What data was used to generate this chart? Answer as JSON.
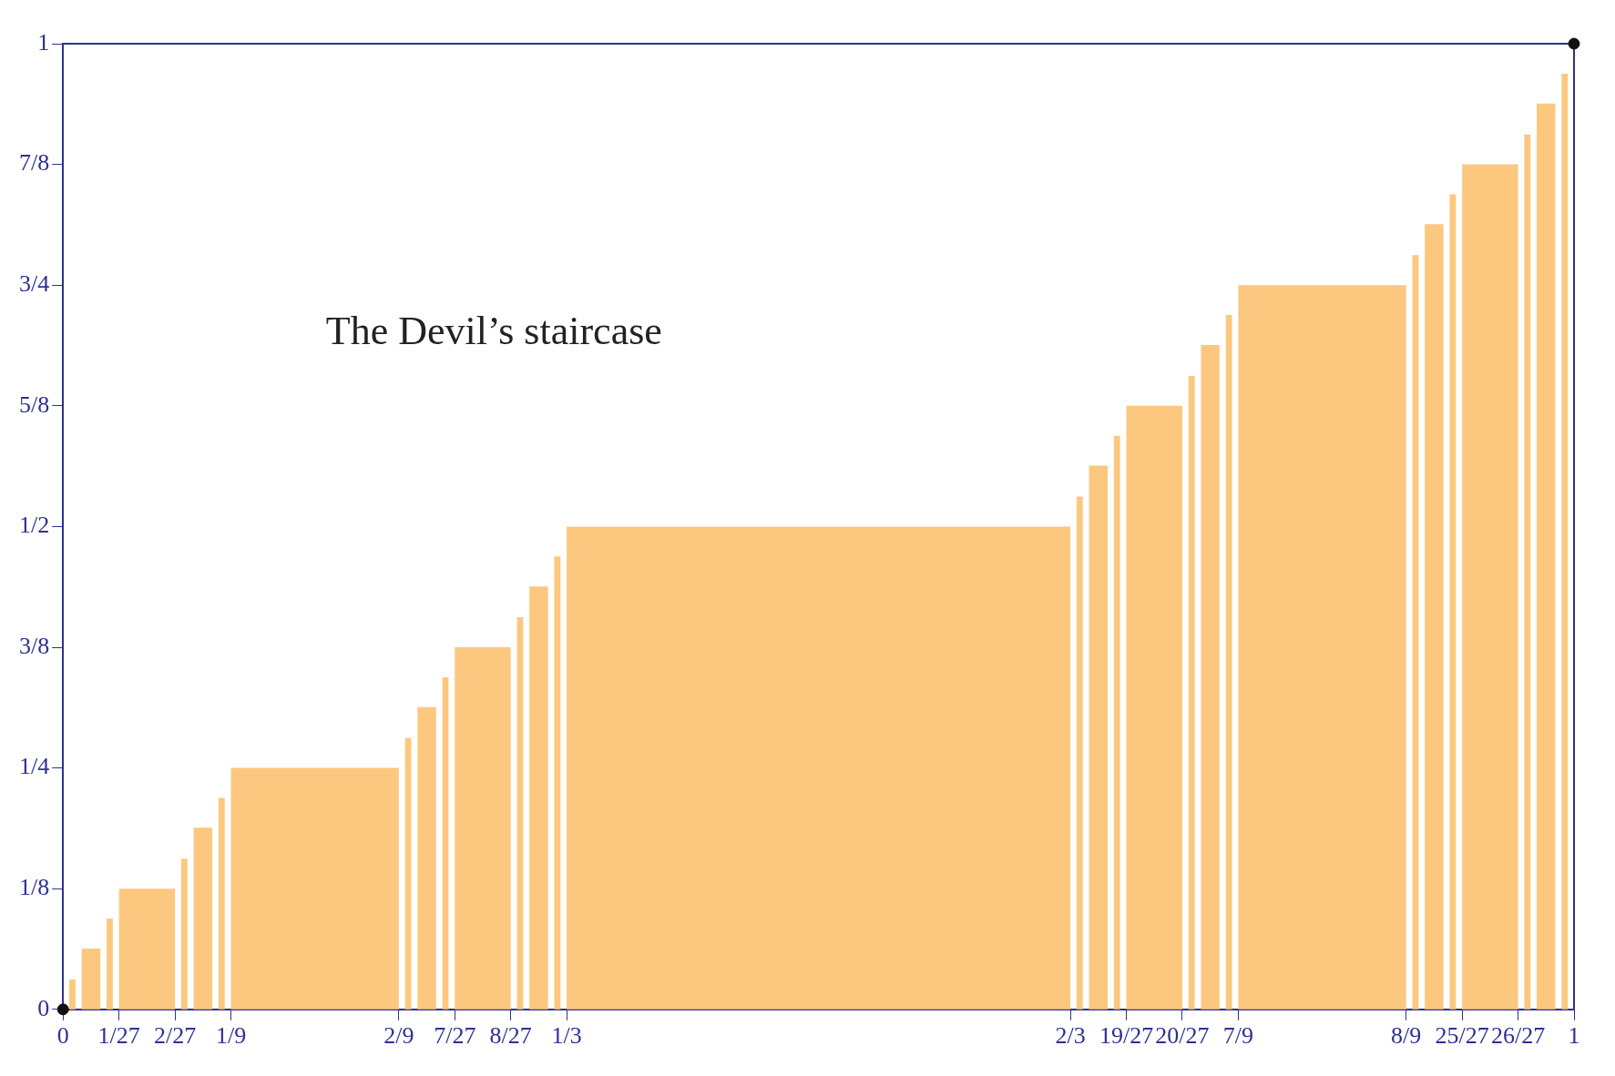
{
  "chart_data": {
    "type": "histogram",
    "annotations": [
      "The Devil’s staircase"
    ],
    "bins": [
      0.00412,
      0.00823,
      0.01235,
      0.02469,
      0.02881,
      0.03292,
      0.03704,
      0.07407,
      0.07819,
      0.0823,
      0.08642,
      0.09877,
      0.10288,
      0.107,
      0.11111,
      0.22222,
      0.22634,
      0.23045,
      0.23457,
      0.24691,
      0.25103,
      0.25514,
      0.25926,
      0.2963,
      0.30041,
      0.30453,
      0.30864,
      0.32099,
      0.3251,
      0.32922,
      0.33333,
      0.66667,
      0.67078,
      0.6749,
      0.67901,
      0.69136,
      0.69547,
      0.69959,
      0.7037,
      0.74074,
      0.74486,
      0.74897,
      0.75309,
      0.76543,
      0.76955,
      0.77366,
      0.77778,
      0.88889,
      0.893,
      0.89712,
      0.90123,
      0.91358,
      0.9177,
      0.92181,
      0.92593,
      0.96296,
      0.96708,
      0.97119,
      0.97531,
      0.98765,
      0.99177,
      0.99588
    ],
    "values": [
      0.031,
      null,
      0.063,
      null,
      0.094,
      null,
      0.125,
      null,
      0.156,
      null,
      0.188,
      null,
      0.219,
      null,
      0.25,
      null,
      0.281,
      null,
      0.313,
      null,
      0.344,
      null,
      0.375,
      null,
      0.406,
      null,
      0.438,
      null,
      0.469,
      null,
      0.5,
      null,
      0.531,
      null,
      0.563,
      null,
      0.594,
      null,
      0.625,
      null,
      0.656,
      null,
      0.688,
      null,
      0.719,
      null,
      0.75,
      null,
      0.781,
      null,
      0.813,
      null,
      0.844,
      null,
      0.875,
      null,
      0.906,
      null,
      0.938,
      null,
      0.969
    ],
    "color": "#fcc87f",
    "series": [
      {
        "type": "scatter",
        "x": [
          0,
          1
        ],
        "values": [
          0,
          1
        ],
        "color": "#111111"
      }
    ],
    "marker": "circle",
    "grid": false,
    "legend": false,
    "xlim": [
      0,
      1
    ],
    "xticks": [
      0,
      {
        "value": 0.037037,
        "label": "1/27"
      },
      {
        "value": 0.074074,
        "label": "2/27"
      },
      {
        "value": 0.111111,
        "label": "1/9"
      },
      {
        "value": 0.222222,
        "label": "2/9"
      },
      {
        "value": 0.259259,
        "label": "7/27"
      },
      {
        "value": 0.296296,
        "label": "8/27"
      },
      {
        "value": 0.333333,
        "label": "1/3"
      },
      {
        "value": 0.666667,
        "label": "2/3"
      },
      {
        "value": 0.703704,
        "label": "19/27"
      },
      {
        "value": 0.740741,
        "label": "20/27"
      },
      {
        "value": 0.777778,
        "label": "7/9"
      },
      {
        "value": 0.888889,
        "label": "8/9"
      },
      {
        "value": 0.925926,
        "label": "25/27"
      },
      {
        "value": 0.962963,
        "label": "26/27"
      },
      1
    ],
    "ylim": [
      0,
      1
    ],
    "yticks": [
      0,
      {
        "value": 0.125,
        "label": "1/8"
      },
      {
        "value": 0.25,
        "label": "1/4"
      },
      {
        "value": 0.375,
        "label": "3/8"
      },
      {
        "value": 0.5,
        "label": "1/2"
      },
      {
        "value": 0.625,
        "label": "5/8"
      },
      {
        "value": 0.75,
        "label": "3/4"
      },
      {
        "value": 0.875,
        "label": "7/8"
      },
      1
    ]
  }
}
